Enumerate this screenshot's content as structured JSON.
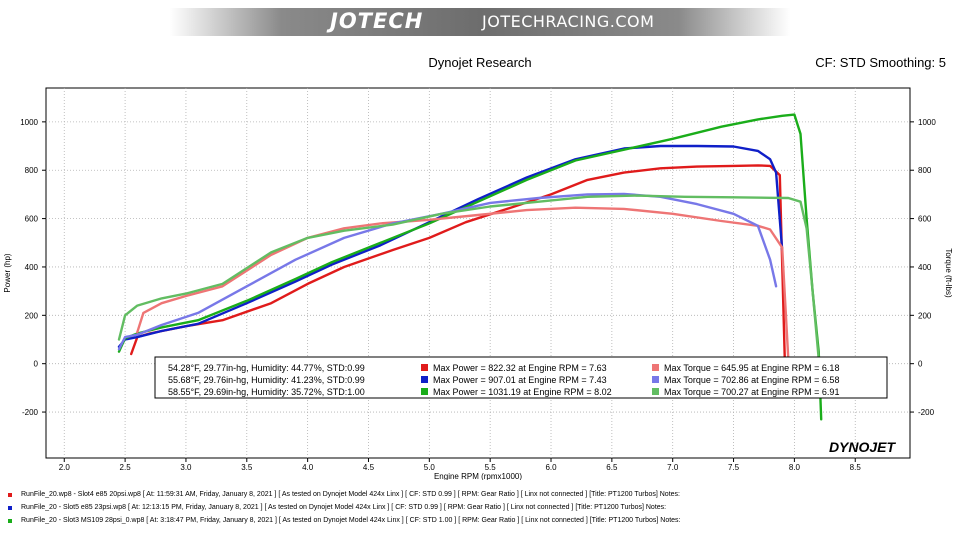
{
  "banner": {
    "brand": "JOTECH",
    "site": "JOTECHRACING.COM"
  },
  "header": {
    "title": "Dynojet Research",
    "cf": "CF: STD Smoothing: 5"
  },
  "chart_data": {
    "type": "line",
    "xlabel": "Engine RPM (rpmx1000)",
    "ylabel_left": "Power (hp)",
    "ylabel_right": "Torque (ft-lbs)",
    "xlim": [
      1.85,
      8.95
    ],
    "ylim": [
      -390,
      1140
    ],
    "xticks": [
      "2.0",
      "2.5",
      "3.0",
      "3.5",
      "4.0",
      "4.5",
      "5.0",
      "5.5",
      "6.0",
      "6.5",
      "7.0",
      "7.5",
      "8.0",
      "8.5"
    ],
    "yticks": [
      "-200",
      "0",
      "200",
      "400",
      "600",
      "800",
      "1000"
    ],
    "grid": true,
    "series": [
      {
        "kind": "power",
        "color": "#e01b1b",
        "x": [
          2.55,
          2.6,
          2.7,
          3.0,
          3.3,
          3.7,
          4.0,
          4.3,
          4.7,
          5.0,
          5.3,
          5.7,
          6.0,
          6.3,
          6.6,
          6.9,
          7.2,
          7.5,
          7.7,
          7.8,
          7.88,
          7.92
        ],
        "y": [
          40,
          110,
          125,
          155,
          180,
          250,
          330,
          400,
          470,
          520,
          585,
          650,
          700,
          760,
          790,
          808,
          815,
          818,
          820,
          818,
          780,
          30
        ]
      },
      {
        "kind": "power",
        "color": "#0f1fc8",
        "x": [
          2.45,
          2.5,
          2.6,
          2.8,
          3.1,
          3.5,
          3.9,
          4.2,
          4.6,
          5.0,
          5.4,
          5.8,
          6.2,
          6.6,
          6.9,
          7.2,
          7.5,
          7.7,
          7.8,
          7.85,
          7.9
        ],
        "y": [
          70,
          100,
          110,
          135,
          165,
          250,
          340,
          410,
          490,
          585,
          680,
          770,
          845,
          890,
          900,
          900,
          898,
          880,
          845,
          790,
          470
        ]
      },
      {
        "kind": "power",
        "color": "#1aad1a",
        "x": [
          2.45,
          2.5,
          2.6,
          2.8,
          3.1,
          3.5,
          3.9,
          4.2,
          4.6,
          5.0,
          5.4,
          5.8,
          6.2,
          6.6,
          7.0,
          7.4,
          7.7,
          7.9,
          8.0,
          8.05,
          8.1,
          8.15,
          8.2,
          8.22
        ],
        "y": [
          50,
          105,
          125,
          150,
          180,
          260,
          350,
          420,
          500,
          580,
          670,
          760,
          840,
          885,
          930,
          980,
          1010,
          1025,
          1030,
          950,
          600,
          300,
          50,
          -230
        ]
      },
      {
        "kind": "torque",
        "color": "#ee7575",
        "x": [
          2.6,
          2.65,
          2.8,
          3.0,
          3.3,
          3.7,
          4.0,
          4.3,
          4.6,
          5.0,
          5.4,
          5.8,
          6.2,
          6.6,
          7.0,
          7.4,
          7.7,
          7.8,
          7.9,
          7.95
        ],
        "y": [
          130,
          210,
          250,
          280,
          320,
          450,
          520,
          560,
          580,
          595,
          615,
          635,
          645,
          640,
          620,
          590,
          570,
          555,
          480,
          20
        ]
      },
      {
        "kind": "torque",
        "color": "#7878e8",
        "x": [
          2.45,
          2.5,
          2.6,
          2.8,
          3.1,
          3.5,
          3.9,
          4.3,
          4.7,
          5.1,
          5.5,
          5.9,
          6.3,
          6.6,
          6.9,
          7.2,
          7.5,
          7.7,
          7.8,
          7.85
        ],
        "y": [
          60,
          110,
          120,
          160,
          210,
          320,
          430,
          520,
          580,
          620,
          665,
          685,
          700,
          702,
          690,
          660,
          620,
          570,
          430,
          320
        ]
      },
      {
        "kind": "torque",
        "color": "#62bd62",
        "x": [
          2.45,
          2.5,
          2.6,
          2.8,
          3.0,
          3.3,
          3.7,
          4.0,
          4.3,
          4.7,
          5.1,
          5.5,
          5.9,
          6.3,
          6.7,
          7.1,
          7.5,
          7.8,
          7.95,
          8.05,
          8.1,
          8.15,
          8.2
        ],
        "y": [
          100,
          200,
          240,
          270,
          290,
          330,
          460,
          520,
          550,
          575,
          620,
          650,
          670,
          690,
          695,
          690,
          688,
          686,
          685,
          670,
          560,
          300,
          20
        ]
      }
    ],
    "legend_rows": [
      {
        "conditions": "54.28°F, 29.77in-hg, Humidity: 44.77%, STD:0.99",
        "power_color": "#e01b1b",
        "power": "Max Power = 822.32 at Engine RPM = 7.63",
        "torque_color": "#ee7575",
        "torque": "Max Torque = 645.95 at Engine RPM = 6.18"
      },
      {
        "conditions": "55.68°F, 29.76in-hg, Humidity: 41.23%, STD:0.99",
        "power_color": "#0f1fc8",
        "power": "Max Power = 907.01 at Engine RPM = 7.43",
        "torque_color": "#7878e8",
        "torque": "Max Torque = 702.86 at Engine RPM = 6.58"
      },
      {
        "conditions": "58.55°F, 29.69in-hg, Humidity: 35.72%, STD:1.00",
        "power_color": "#1aad1a",
        "power": "Max Power = 1031.19 at Engine RPM = 8.02",
        "torque_color": "#62bd62",
        "torque": "Max Torque = 700.27 at Engine RPM = 6.91"
      }
    ],
    "watermark": "DYNOJET"
  },
  "footer": [
    {
      "color": "#e01b1b",
      "text": "RunFile_20.wp8 - Slot4 e85 20psi.wp8 [ At: 11:59:31 AM, Friday, January 8, 2021 ] [ As tested on Dynojet Model 424x Linx ] [ CF: STD 0.99 ] [ RPM: Gear Ratio ] [ Linx not connected ] [Title: PT1200 Turbos]  Notes:"
    },
    {
      "color": "#0f1fc8",
      "text": "RunFile_20 - Slot5 e85 23psi.wp8 [ At: 12:13:15 PM, Friday, January 8, 2021 ] [ As tested on Dynojet Model 424x Linx ] [ CF: STD 0.99 ] [ RPM: Gear Ratio ] [ Linx not connected ] [Title: PT1200 Turbos]  Notes:"
    },
    {
      "color": "#1aad1a",
      "text": "RunFile_20 - Slot3 MS109 28psi_0.wp8 [ At: 3:18:47 PM, Friday, January 8, 2021 ] [ As tested on Dynojet Model 424x Linx ] [ CF: STD 1.00 ] [ RPM: Gear Ratio ] [ Linx not connected ] [Title: PT1200 Turbos]  Notes:"
    }
  ]
}
